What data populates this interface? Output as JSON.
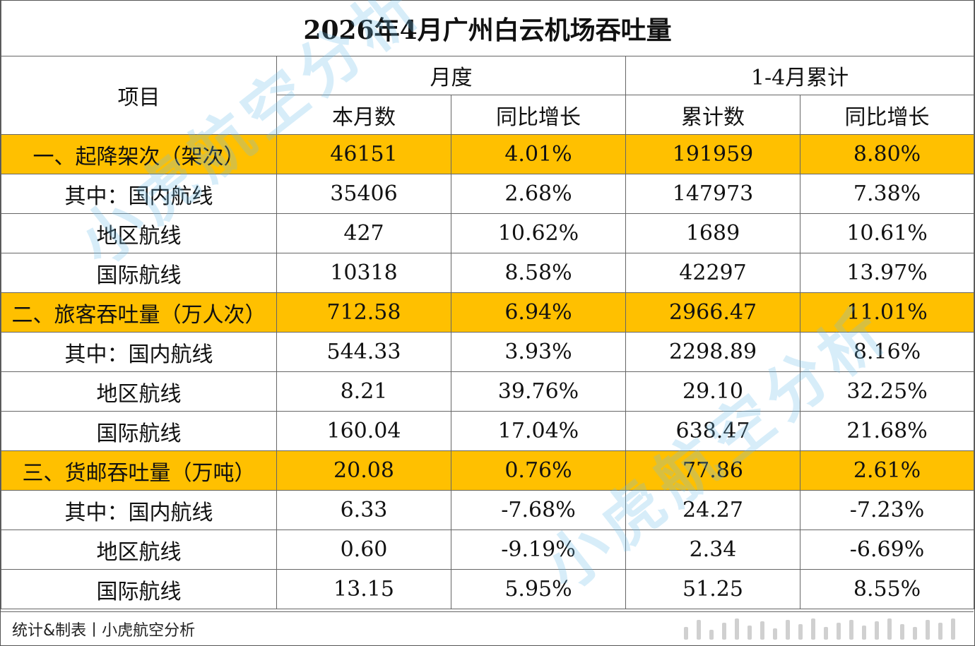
{
  "title": "2026年4月广州白云机场吞吐量",
  "headers": {
    "item": "项目",
    "monthly": "月度",
    "cumulative": "1-4月累计",
    "this_month": "本月数",
    "yoy_monthly": "同比增长",
    "cumulative_count": "累计数",
    "yoy_cumulative": "同比增长"
  },
  "rows": [
    {
      "label": "一、起降架次（架次）",
      "month": "46151",
      "month_yoy": "4.01%",
      "cum": "191959",
      "cum_yoy": "8.80%",
      "major": true
    },
    {
      "label": "其中：国内航线",
      "month": "35406",
      "month_yoy": "2.68%",
      "cum": "147973",
      "cum_yoy": "7.38%",
      "major": false
    },
    {
      "label": "地区航线",
      "month": "427",
      "month_yoy": "10.62%",
      "cum": "1689",
      "cum_yoy": "10.61%",
      "major": false
    },
    {
      "label": "国际航线",
      "month": "10318",
      "month_yoy": "8.58%",
      "cum": "42297",
      "cum_yoy": "13.97%",
      "major": false
    },
    {
      "label": "二、旅客吞吐量（万人次）",
      "month": "712.58",
      "month_yoy": "6.94%",
      "cum": "2966.47",
      "cum_yoy": "11.01%",
      "major": true
    },
    {
      "label": "其中：国内航线",
      "month": "544.33",
      "month_yoy": "3.93%",
      "cum": "2298.89",
      "cum_yoy": "8.16%",
      "major": false
    },
    {
      "label": "地区航线",
      "month": "8.21",
      "month_yoy": "39.76%",
      "cum": "29.10",
      "cum_yoy": "32.25%",
      "major": false
    },
    {
      "label": "国际航线",
      "month": "160.04",
      "month_yoy": "17.04%",
      "cum": "638.47",
      "cum_yoy": "21.68%",
      "major": false
    },
    {
      "label": "三、货邮吞吐量（万吨）",
      "month": "20.08",
      "month_yoy": "0.76%",
      "cum": "77.86",
      "cum_yoy": "2.61%",
      "major": true
    },
    {
      "label": "其中：国内航线",
      "month": "6.33",
      "month_yoy": "-7.68%",
      "cum": "24.27",
      "cum_yoy": "-7.23%",
      "major": false
    },
    {
      "label": "地区航线",
      "month": "0.60",
      "month_yoy": "-9.19%",
      "cum": "2.34",
      "cum_yoy": "-6.69%",
      "major": false
    },
    {
      "label": "国际航线",
      "month": "13.15",
      "month_yoy": "5.95%",
      "cum": "51.25",
      "cum_yoy": "8.55%",
      "major": false
    }
  ],
  "watermark": "小虎航空分析",
  "footer": "统计&制表丨小虎航空分析",
  "colors": {
    "highlight": "#ffc000",
    "border": "#666666",
    "watermark": "#6ebeeb"
  }
}
